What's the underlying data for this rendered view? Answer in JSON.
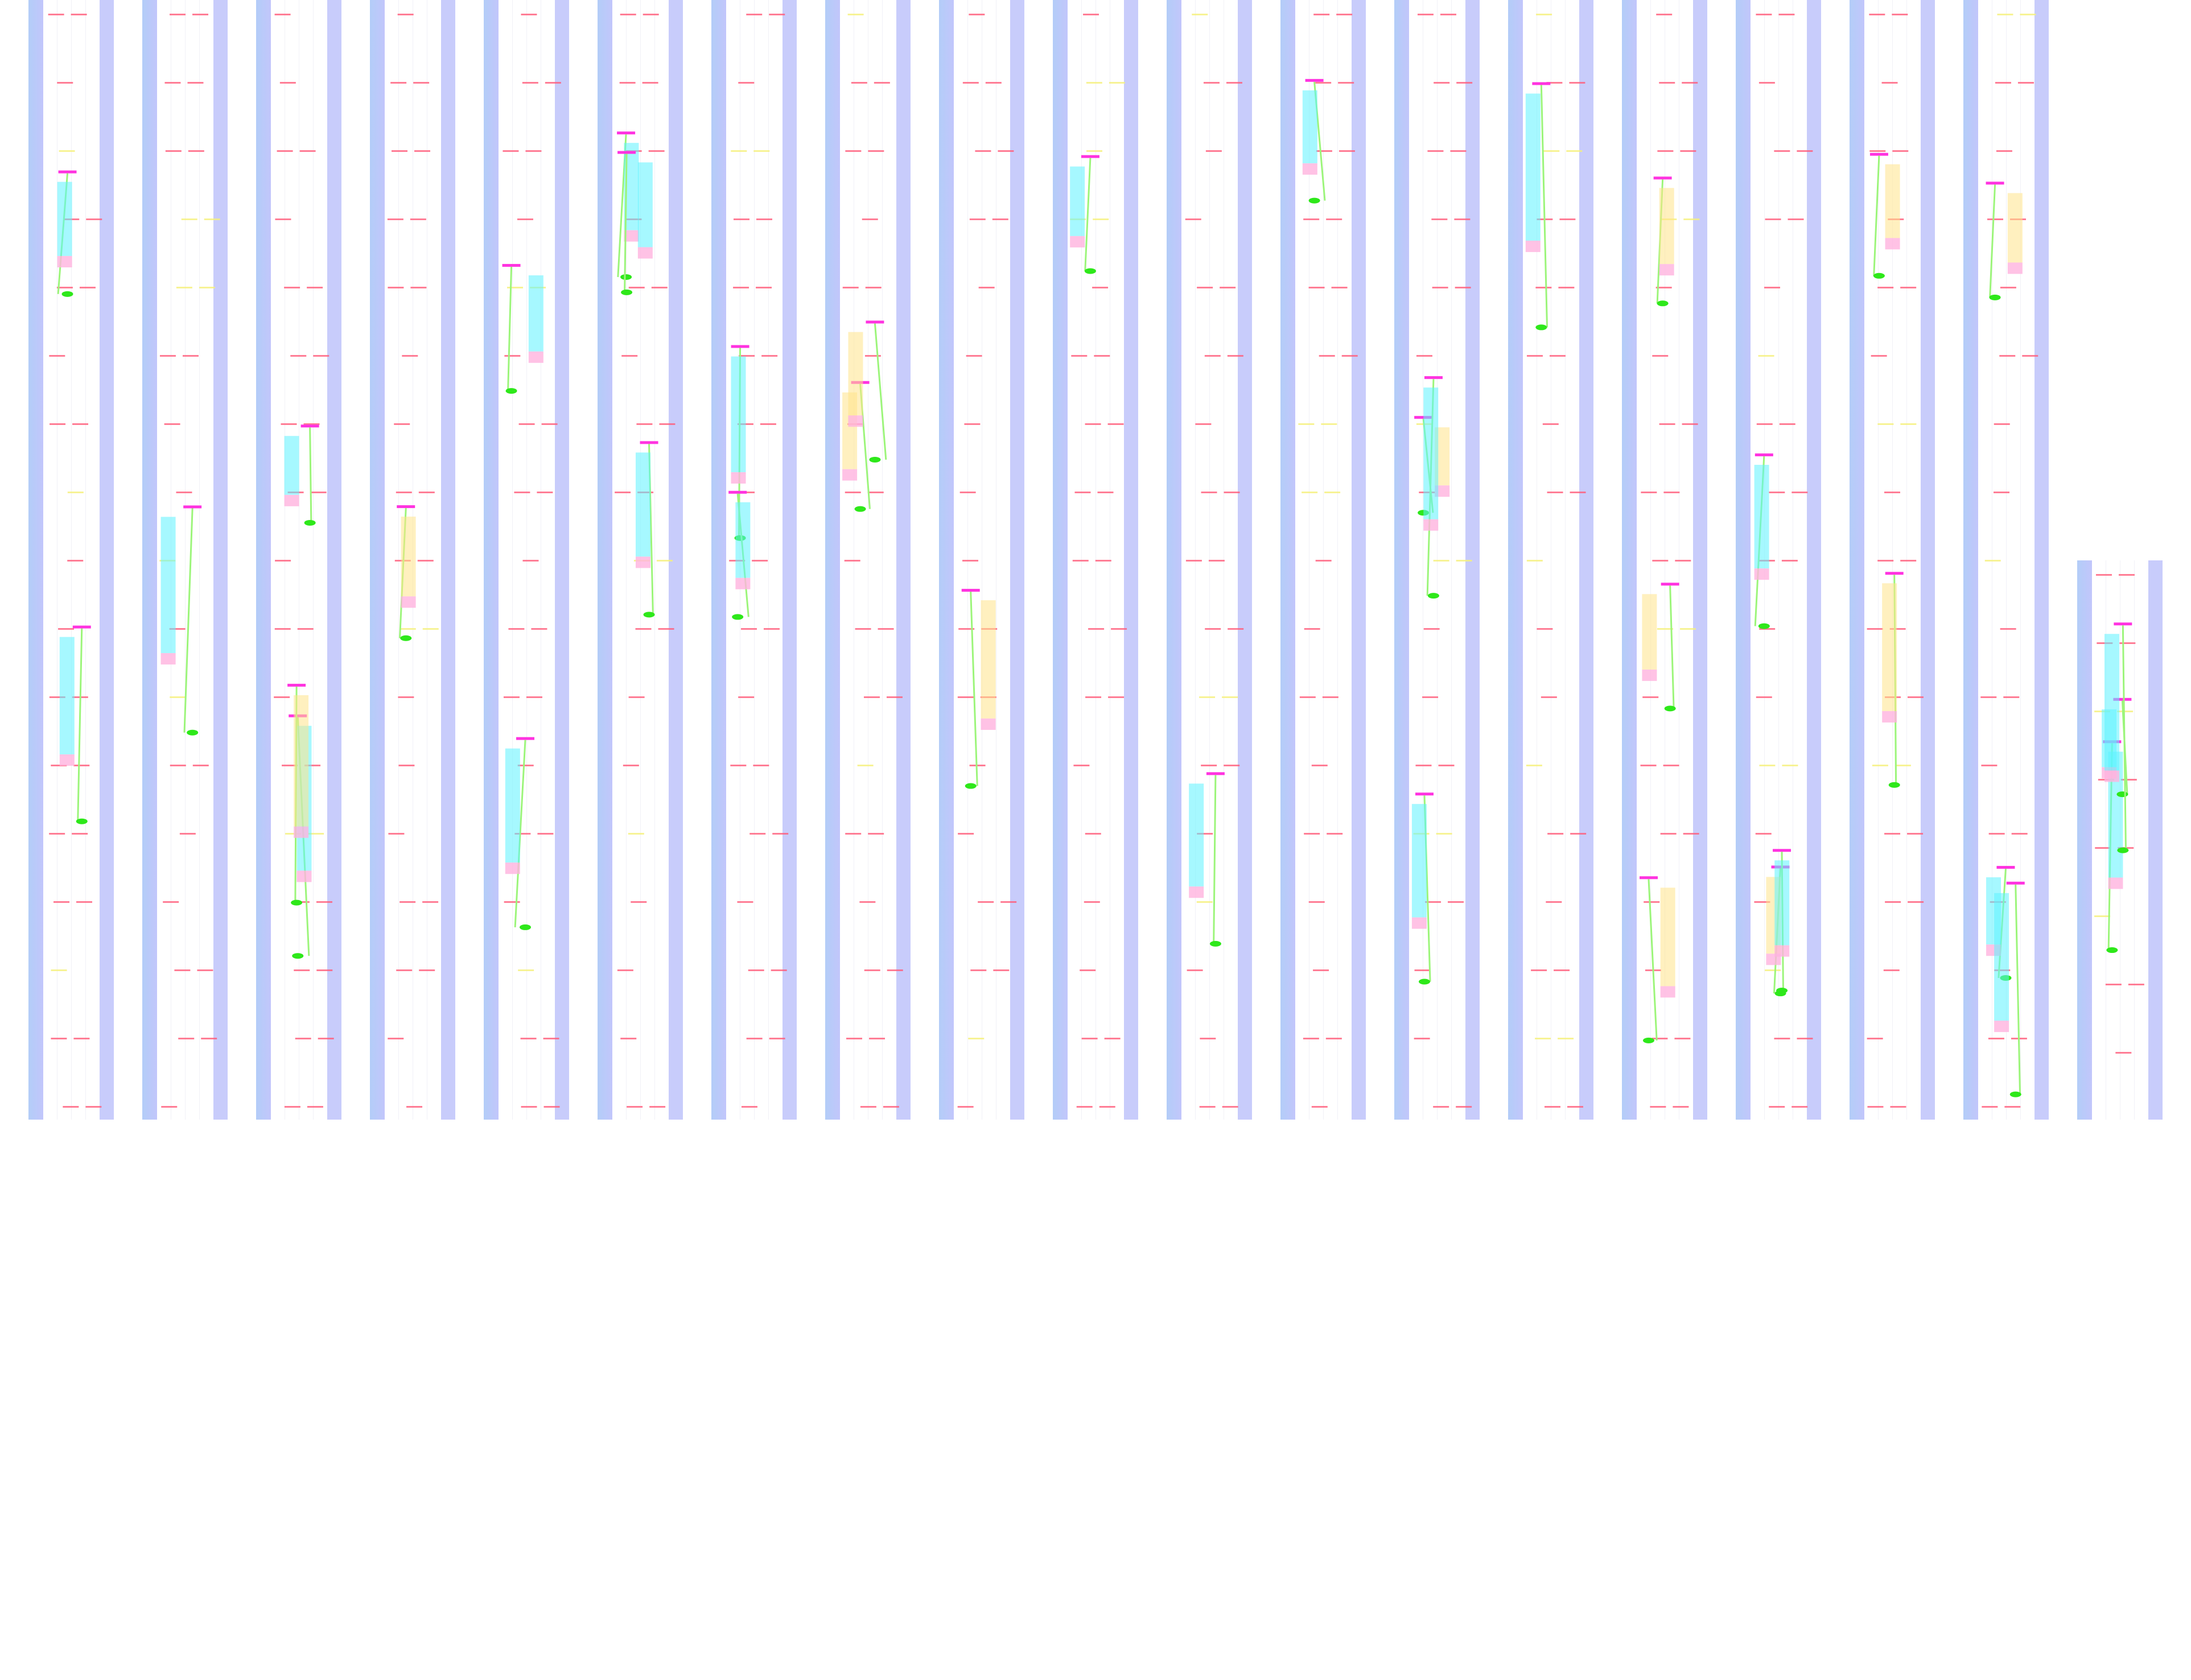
{
  "colors": {
    "left_strip": "#b3cdf8",
    "right_strip": "#c8ccfb",
    "dash_red": "#ff5c7a",
    "dash_yellow": "#f5f07a",
    "bar_magenta": "#ff33e0",
    "line_green": "#9cf57a",
    "marker_green": "#2ee81a",
    "band_cyan": "#5cf2ff",
    "band_yellow": "#ffe38a",
    "band_pink": "#ffb3de"
  }
}
